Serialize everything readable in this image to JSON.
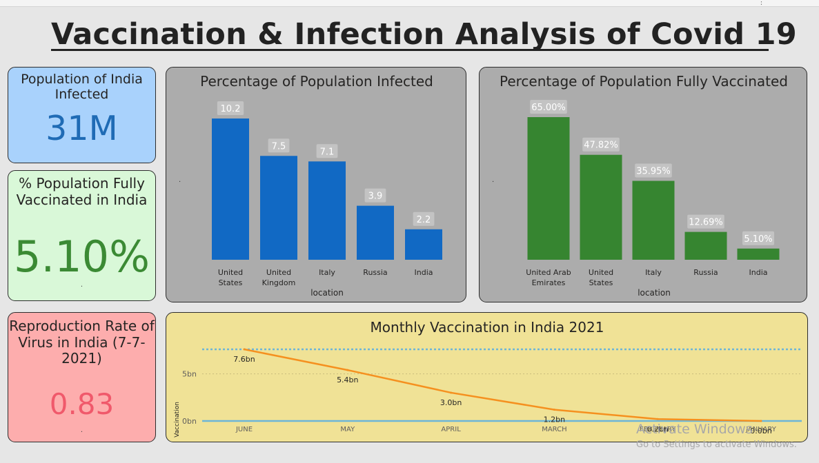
{
  "title": "Vaccination & Infection Analysis of Covid 19",
  "kpis": {
    "infected": {
      "label": "Population of India Infected",
      "value": "31M"
    },
    "vaccinated": {
      "label": "% Population Fully Vaccinated in India",
      "value": "5.10%",
      "footnote": "."
    },
    "reproduction": {
      "label": "Reproduction Rate of Virus in India (7-7-2021)",
      "value": "0.83",
      "footnote": "."
    }
  },
  "chart_data": [
    {
      "type": "bar",
      "title": "Percentage of Population Infected",
      "xlabel": "location",
      "ylabel": "",
      "categories": [
        "United States",
        "United Kingdom",
        "Italy",
        "Russia",
        "India"
      ],
      "values": [
        10.2,
        7.5,
        7.1,
        3.9,
        2.2
      ],
      "data_labels": [
        "10.2",
        "7.5",
        "7.1",
        "3.9",
        "2.2"
      ],
      "color": "#1169c4",
      "ylim": [
        0,
        10.2
      ],
      "side_mark": "."
    },
    {
      "type": "bar",
      "title": "Percentage of Population Fully Vaccinated",
      "xlabel": "location",
      "ylabel": "",
      "categories": [
        "United Arab Emirates",
        "United States",
        "Italy",
        "Russia",
        "India"
      ],
      "values": [
        65.0,
        47.82,
        35.95,
        12.69,
        5.1
      ],
      "data_labels": [
        "65.00%",
        "47.82%",
        "35.95%",
        "12.69%",
        "5.10%"
      ],
      "color": "#368530",
      "ylim": [
        0,
        65
      ],
      "side_mark": "."
    },
    {
      "type": "line",
      "title": "Monthly Vaccination in India 2021",
      "xlabel": "",
      "ylabel": "Vaccination",
      "categories": [
        "JUNE",
        "MAY",
        "APRIL",
        "MARCH",
        "FEBRUARY",
        "JANUARY"
      ],
      "values": [
        7.6,
        5.4,
        3.0,
        1.2,
        0.2,
        0.0
      ],
      "data_labels": [
        "7.6bn",
        "5.4bn",
        "3.0bn",
        "1.2bn",
        "0.2bn",
        "0.0bn"
      ],
      "y_ticks": [
        {
          "value": 0,
          "label": "0bn"
        },
        {
          "value": 5,
          "label": "5bn"
        }
      ],
      "reference_lines": [
        7.6,
        0.0
      ],
      "ylim": [
        0,
        7.6
      ],
      "color": "#f5901f",
      "grid": true
    }
  ],
  "watermark": {
    "line1": "Activate Windows",
    "line2": "Go to Settings to activate Windows."
  },
  "topbar_mark": "⋮",
  "colors": {
    "bg": "#e6e6e6",
    "card_blue": "#a9d2fc",
    "card_green": "#d9f8d8",
    "card_red": "#fdadad",
    "chart_gray": "#acacac",
    "chart_yellow": "#f0e296"
  }
}
